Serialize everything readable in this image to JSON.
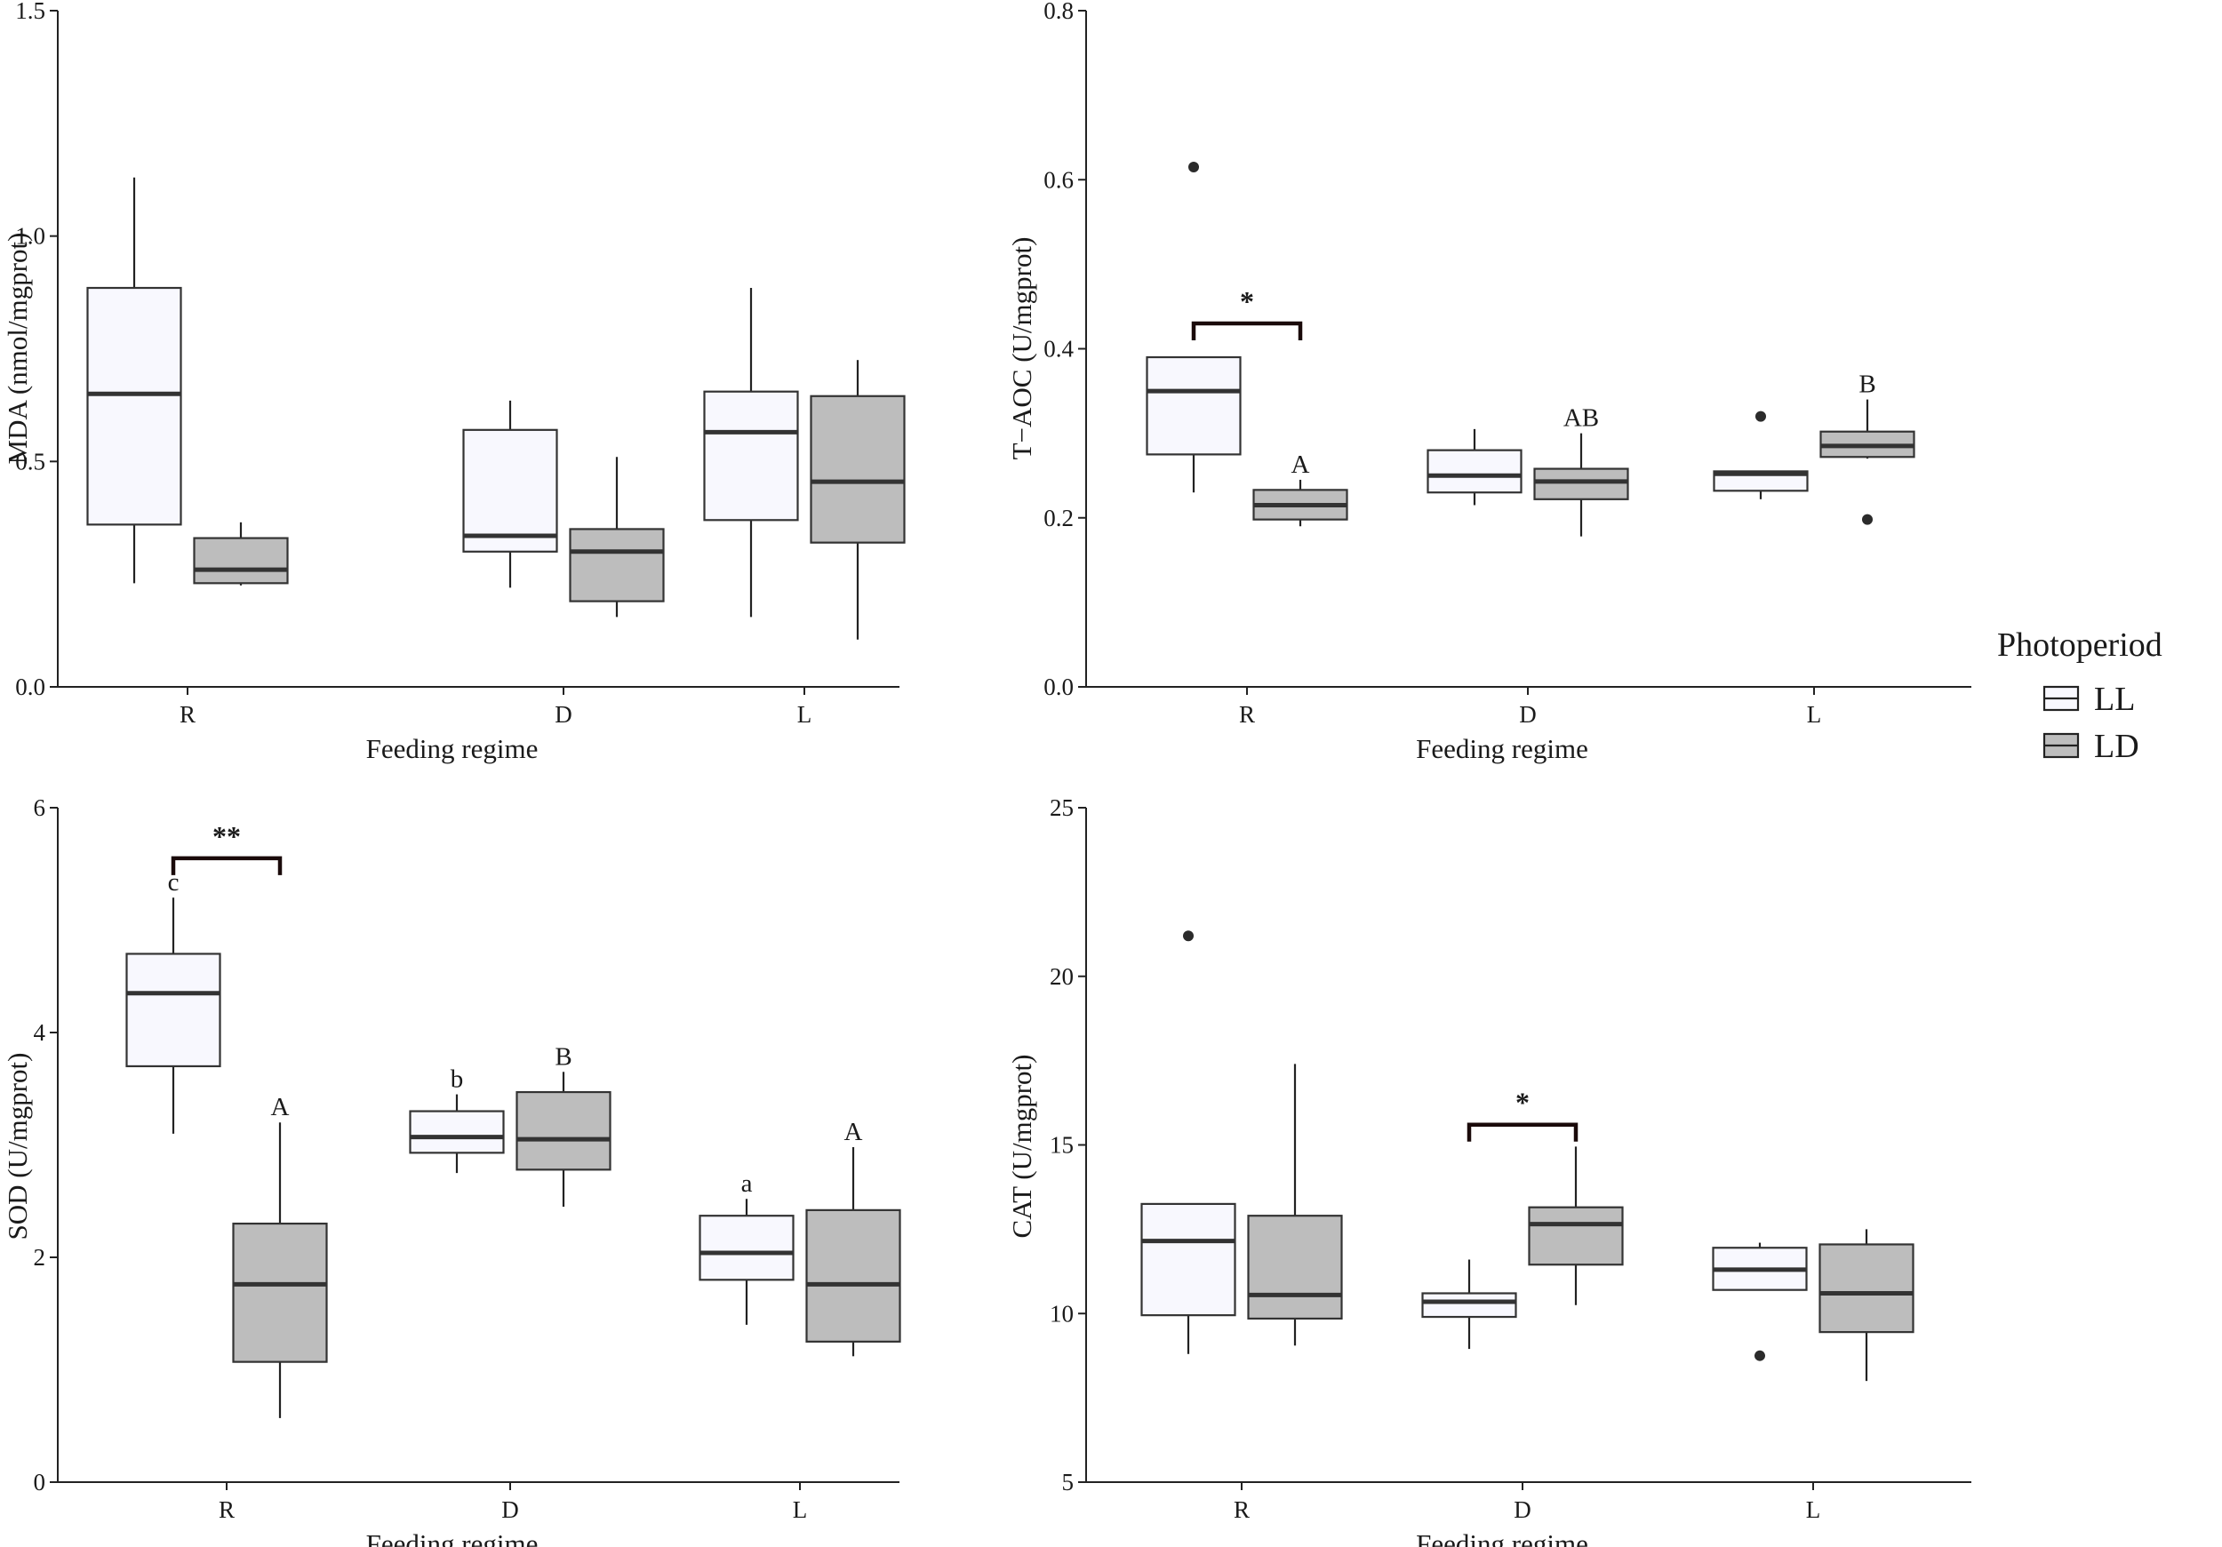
{
  "chart_data": [
    {
      "type": "box",
      "ylabel": "MDA (nmol/mgprot)",
      "xlabel": "Feeding regime",
      "categories": [
        "R",
        "D",
        "L"
      ],
      "ylim": [
        0,
        1.5
      ],
      "yticks": [
        0,
        0.5,
        1.0,
        1.5
      ],
      "ytick_labels": [
        "0.0",
        "0.5",
        "1.0",
        "1.5"
      ],
      "series": [
        {
          "name": "LL",
          "boxes": [
            {
              "low": 0.23,
              "q1": 0.36,
              "median": 0.65,
              "q3": 0.885,
              "high": 1.13,
              "outliers": []
            },
            {
              "low": 0.22,
              "q1": 0.3,
              "median": 0.335,
              "q3": 0.57,
              "high": 0.635,
              "outliers": []
            },
            {
              "low": 0.155,
              "q1": 0.37,
              "median": 0.565,
              "q3": 0.655,
              "high": 0.885,
              "outliers": []
            }
          ]
        },
        {
          "name": "LD",
          "boxes": [
            {
              "low": 0.225,
              "q1": 0.23,
              "median": 0.26,
              "q3": 0.33,
              "high": 0.365,
              "outliers": []
            },
            {
              "low": 0.155,
              "q1": 0.19,
              "median": 0.3,
              "q3": 0.35,
              "high": 0.51,
              "outliers": []
            },
            {
              "low": 0.105,
              "q1": 0.32,
              "median": 0.455,
              "q3": 0.645,
              "high": 0.725,
              "outliers": []
            }
          ]
        }
      ],
      "letters": [],
      "brackets": []
    },
    {
      "type": "box",
      "ylabel": "T−AOC (U/mgprot)",
      "xlabel": "Feeding regime",
      "categories": [
        "R",
        "D",
        "L"
      ],
      "ylim": [
        0,
        0.8
      ],
      "yticks": [
        0,
        0.2,
        0.4,
        0.6,
        0.8
      ],
      "ytick_labels": [
        "0.0",
        "0.2",
        "0.4",
        "0.6",
        "0.8"
      ],
      "series": [
        {
          "name": "LL",
          "boxes": [
            {
              "low": 0.23,
              "q1": 0.275,
              "median": 0.35,
              "q3": 0.39,
              "high": 0.39,
              "outliers": [
                0.615
              ]
            },
            {
              "low": 0.215,
              "q1": 0.23,
              "median": 0.25,
              "q3": 0.28,
              "high": 0.305,
              "outliers": []
            },
            {
              "low": 0.222,
              "q1": 0.232,
              "median": 0.252,
              "q3": 0.255,
              "high": 0.255,
              "outliers": [
                0.32
              ]
            }
          ]
        },
        {
          "name": "LD",
          "boxes": [
            {
              "low": 0.19,
              "q1": 0.198,
              "median": 0.215,
              "q3": 0.233,
              "high": 0.245,
              "outliers": []
            },
            {
              "low": 0.178,
              "q1": 0.222,
              "median": 0.243,
              "q3": 0.258,
              "high": 0.3,
              "outliers": []
            },
            {
              "low": 0.27,
              "q1": 0.272,
              "median": 0.285,
              "q3": 0.302,
              "high": 0.34,
              "outliers": [
                0.198
              ]
            }
          ]
        }
      ],
      "letters": [
        {
          "series": "LD",
          "category": "R",
          "text": "A",
          "y": 0.245
        },
        {
          "series": "LD",
          "category": "D",
          "text": "AB",
          "y": 0.3
        },
        {
          "series": "LD",
          "category": "L",
          "text": "B",
          "y": 0.34
        }
      ],
      "brackets": [
        {
          "category": "R",
          "text": "*",
          "y": 0.43,
          "drop": 0.02
        }
      ]
    },
    {
      "type": "box",
      "ylabel": "SOD (U/mgprot)",
      "xlabel": "Feeding regime",
      "categories": [
        "R",
        "D",
        "L"
      ],
      "ylim": [
        0,
        6
      ],
      "yticks": [
        0,
        2,
        4,
        6
      ],
      "ytick_labels": [
        "0",
        "2",
        "4",
        "6"
      ],
      "series": [
        {
          "name": "LL",
          "boxes": [
            {
              "low": 3.1,
              "q1": 3.7,
              "median": 4.35,
              "q3": 4.7,
              "high": 5.2,
              "outliers": []
            },
            {
              "low": 2.75,
              "q1": 2.93,
              "median": 3.07,
              "q3": 3.3,
              "high": 3.45,
              "outliers": []
            },
            {
              "low": 1.4,
              "q1": 1.8,
              "median": 2.04,
              "q3": 2.37,
              "high": 2.52,
              "outliers": []
            }
          ]
        },
        {
          "name": "LD",
          "boxes": [
            {
              "low": 0.57,
              "q1": 1.07,
              "median": 1.76,
              "q3": 2.3,
              "high": 3.2,
              "outliers": []
            },
            {
              "low": 2.45,
              "q1": 2.78,
              "median": 3.05,
              "q3": 3.47,
              "high": 3.65,
              "outliers": []
            },
            {
              "low": 1.12,
              "q1": 1.25,
              "median": 1.76,
              "q3": 2.42,
              "high": 2.98,
              "outliers": []
            }
          ]
        }
      ],
      "letters": [
        {
          "series": "LL",
          "category": "R",
          "text": "c",
          "y": 5.2
        },
        {
          "series": "LL",
          "category": "D",
          "text": "b",
          "y": 3.45
        },
        {
          "series": "LL",
          "category": "L",
          "text": "a",
          "y": 2.52
        },
        {
          "series": "LD",
          "category": "R",
          "text": "A",
          "y": 3.2
        },
        {
          "series": "LD",
          "category": "D",
          "text": "B",
          "y": 3.65
        },
        {
          "series": "LD",
          "category": "L",
          "text": "A",
          "y": 2.98
        }
      ],
      "brackets": [
        {
          "category": "R",
          "text": "**",
          "y": 5.55,
          "drop": 0.15
        }
      ]
    },
    {
      "type": "box",
      "ylabel": "CAT (U/mgprot)",
      "xlabel": "Feeding regime",
      "categories": [
        "R",
        "D",
        "L"
      ],
      "ylim": [
        5,
        25
      ],
      "yticks": [
        5,
        10,
        15,
        20,
        25
      ],
      "ytick_labels": [
        "5",
        "10",
        "15",
        "20",
        "25"
      ],
      "series": [
        {
          "name": "LL",
          "boxes": [
            {
              "low": 8.8,
              "q1": 9.95,
              "median": 12.15,
              "q3": 13.25,
              "high": 13.25,
              "outliers": [
                21.2
              ]
            },
            {
              "low": 8.95,
              "q1": 9.9,
              "median": 10.35,
              "q3": 10.6,
              "high": 11.6,
              "outliers": []
            },
            {
              "low": 10.7,
              "q1": 10.7,
              "median": 11.3,
              "q3": 11.95,
              "high": 12.1,
              "outliers": [
                8.75
              ]
            }
          ]
        },
        {
          "name": "LD",
          "boxes": [
            {
              "low": 9.05,
              "q1": 9.85,
              "median": 10.55,
              "q3": 12.9,
              "high": 17.4,
              "outliers": []
            },
            {
              "low": 10.25,
              "q1": 11.45,
              "median": 12.65,
              "q3": 13.15,
              "high": 14.95,
              "outliers": []
            },
            {
              "low": 8.0,
              "q1": 9.45,
              "median": 10.6,
              "q3": 12.05,
              "high": 12.5,
              "outliers": []
            }
          ]
        }
      ],
      "letters": [],
      "brackets": [
        {
          "category": "D",
          "text": "*",
          "y": 15.6,
          "drop": 0.5
        }
      ]
    }
  ],
  "legend": {
    "title": "Photoperiod",
    "items": [
      {
        "label": "LL",
        "color": "#f8f8fe"
      },
      {
        "label": "LD",
        "color": "#bdbdbd"
      }
    ]
  },
  "colors": {
    "LL": "#f8f8fe",
    "LD": "#bdbdbd"
  }
}
